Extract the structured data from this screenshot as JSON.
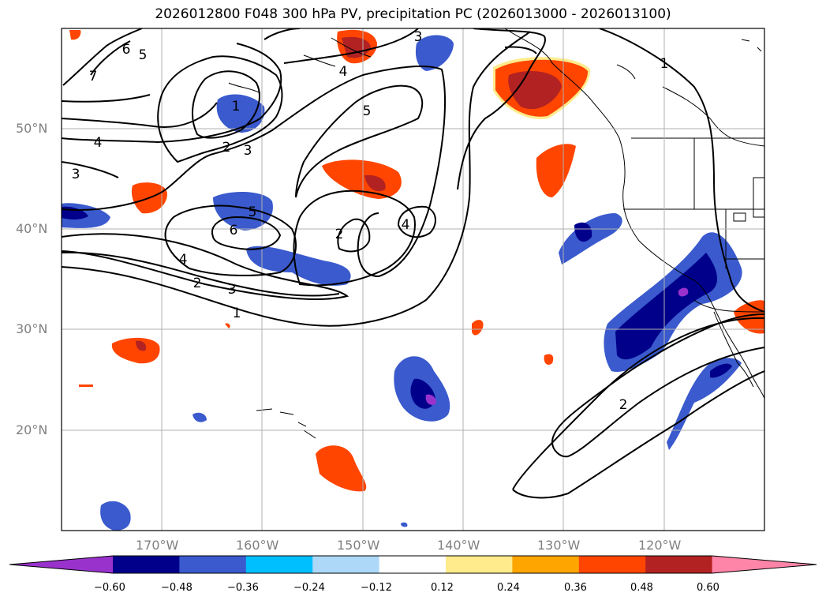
{
  "title": "2026012800 F048 300 hPa PV, precipitation PC (2026013000 - 2026013100)",
  "map": {
    "region": "North Pacific and western North America",
    "projection": "cylindrical",
    "lon_range": [
      -180,
      -110
    ],
    "lat_range": [
      10,
      60
    ],
    "gridlines": true,
    "lat_labels": [
      "50°N",
      "40°N",
      "30°N",
      "20°N"
    ],
    "lon_labels": [
      "170°W",
      "160°W",
      "150°W",
      "140°W",
      "130°W",
      "120°W"
    ],
    "contour_labels": [
      "7",
      "6",
      "5",
      "4",
      "3",
      "3",
      "1",
      "2",
      "3",
      "4",
      "5",
      "4",
      "2",
      "6",
      "5",
      "4",
      "2",
      "3",
      "1",
      "2",
      "1"
    ]
  },
  "colorbar": {
    "ticks": [
      "−0.60",
      "−0.48",
      "−0.36",
      "−0.24",
      "−0.12",
      "0.12",
      "0.24",
      "0.36",
      "0.48",
      "0.60"
    ],
    "colors": [
      "#9932cc",
      "#00008b",
      "#3a5acd",
      "#00bfff",
      "#add8f7",
      "#ffffff",
      "#ffeb8c",
      "#ffa500",
      "#ff4500",
      "#b22222",
      "#ff85a8"
    ],
    "extend": "both"
  }
}
